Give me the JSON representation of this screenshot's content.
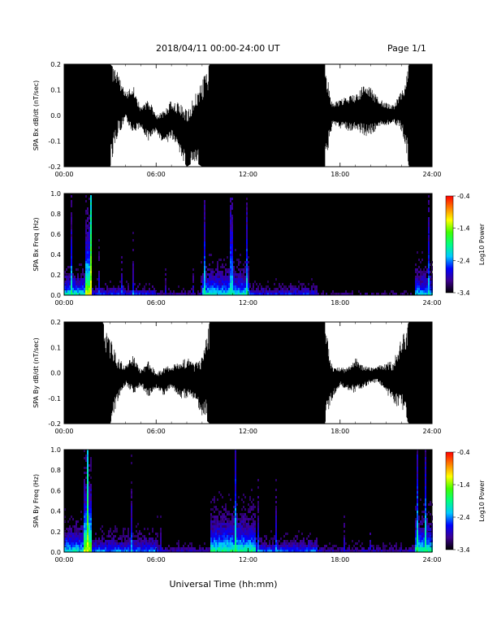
{
  "header": {
    "title": "2018/04/11  00:00-24:00 UT",
    "page": "Page 1/1"
  },
  "colors": {
    "spectrogram_scale": [
      "#000000",
      "#3d0090",
      "#0000ff",
      "#00c8ff",
      "#00ff80",
      "#40ff00",
      "#ffff00",
      "#ff8000",
      "#ff0000"
    ]
  },
  "chart_data": [
    {
      "type": "line",
      "ylabel": "SPA Bx dB/dt (nT/sec)",
      "ylim": [
        -0.2,
        0.2
      ],
      "yticks": [
        {
          "v": 0.2,
          "label": "0.2"
        },
        {
          "v": 0.1,
          "label": "0.1"
        },
        {
          "v": 0.0,
          "label": "0.0"
        },
        {
          "v": -0.1,
          "label": "-0.1"
        },
        {
          "v": -0.2,
          "label": "-0.2"
        }
      ],
      "xlim": [
        0,
        24
      ],
      "xticks": [
        "00:00",
        "06:00",
        "12:00",
        "18:00",
        "24:00"
      ],
      "envelope": {
        "t": [
          0,
          0.5,
          1,
          1.5,
          2,
          2.5,
          3,
          3.5,
          4,
          4.5,
          5,
          5.5,
          6,
          6.5,
          7,
          7.5,
          8,
          8.5,
          9,
          9.5,
          10,
          11,
          12,
          13,
          14,
          15,
          15.5,
          16,
          16.5,
          17,
          17.5,
          18,
          18.5,
          19,
          19.5,
          20,
          20.5,
          21,
          21.5,
          22,
          22.5,
          23,
          23.5,
          24
        ],
        "upper": [
          0.2,
          0.2,
          0.2,
          0.2,
          0.2,
          0.2,
          0.2,
          0.17,
          0.09,
          0.12,
          0.03,
          0.07,
          0.0,
          0.02,
          0.06,
          0.05,
          0.02,
          0.08,
          0.14,
          0.2,
          0.2,
          0.2,
          0.2,
          0.2,
          0.2,
          0.2,
          0.2,
          0.2,
          0.2,
          0.2,
          0.05,
          0.06,
          0.08,
          0.08,
          0.12,
          0.11,
          0.07,
          0.05,
          0.04,
          0.1,
          0.2,
          0.2,
          0.2,
          0.2
        ],
        "lower": [
          -0.2,
          -0.2,
          -0.2,
          -0.2,
          -0.2,
          -0.2,
          -0.2,
          -0.08,
          -0.02,
          -0.07,
          -0.05,
          -0.1,
          -0.06,
          -0.12,
          -0.09,
          -0.15,
          -0.2,
          -0.18,
          -0.2,
          -0.2,
          -0.2,
          -0.2,
          -0.2,
          -0.2,
          -0.2,
          -0.2,
          -0.2,
          -0.2,
          -0.2,
          -0.2,
          -0.04,
          -0.05,
          -0.06,
          -0.06,
          -0.08,
          -0.08,
          -0.05,
          -0.04,
          -0.03,
          -0.06,
          -0.2,
          -0.2,
          -0.2,
          -0.2
        ]
      }
    },
    {
      "type": "heatmap",
      "ylabel": "SPA Bx Freq (Hz)",
      "ylim": [
        0,
        1
      ],
      "yticks": [
        {
          "v": 1.0,
          "label": "1.0"
        },
        {
          "v": 0.8,
          "label": "0.8"
        },
        {
          "v": 0.6,
          "label": "0.6"
        },
        {
          "v": 0.4,
          "label": "0.4"
        },
        {
          "v": 0.2,
          "label": "0.2"
        },
        {
          "v": 0.0,
          "label": "0.0"
        }
      ],
      "xlim": [
        0,
        24
      ],
      "xticks": [
        "00:00",
        "06:00",
        "12:00",
        "18:00",
        "24:00"
      ],
      "colorbar": {
        "label": "Log10 Power",
        "range": [
          -3.4,
          -0.4
        ],
        "ticks": [
          "-0.4",
          "-1.4",
          "-2.4",
          "-3.4"
        ]
      },
      "bands": [
        {
          "t0": 0.0,
          "t1": 1.3,
          "level": 0.55,
          "fmax": 0.12
        },
        {
          "t0": 0.5,
          "t1": 0.6,
          "level": 0.75,
          "fmax": 1.0
        },
        {
          "t0": 1.3,
          "t1": 1.7,
          "level": 0.8,
          "fmax": 0.35
        },
        {
          "t0": 1.7,
          "t1": 6.0,
          "level": 0.35,
          "fmax": 0.06
        },
        {
          "t0": 6.0,
          "t1": 9.0,
          "level": 0.25,
          "fmax": 0.04
        },
        {
          "t0": 9.0,
          "t1": 12.0,
          "level": 0.5,
          "fmax": 0.15
        },
        {
          "t0": 12.0,
          "t1": 16.5,
          "level": 0.35,
          "fmax": 0.06
        },
        {
          "t0": 16.5,
          "t1": 22.8,
          "level": 0.2,
          "fmax": 0.03
        },
        {
          "t0": 22.8,
          "t1": 24.0,
          "level": 0.45,
          "fmax": 0.15
        }
      ]
    },
    {
      "type": "line",
      "ylabel": "SPA By dB/dt (nT/sec)",
      "ylim": [
        -0.2,
        0.2
      ],
      "yticks": [
        {
          "v": 0.2,
          "label": "0.2"
        },
        {
          "v": 0.1,
          "label": "0.1"
        },
        {
          "v": 0.0,
          "label": "0.0"
        },
        {
          "v": -0.1,
          "label": "-0.1"
        },
        {
          "v": -0.2,
          "label": "-0.2"
        }
      ],
      "xlim": [
        0,
        24
      ],
      "xticks": [
        "00:00",
        "06:00",
        "12:00",
        "18:00",
        "24:00"
      ],
      "envelope": {
        "t": [
          0,
          0.5,
          1,
          1.5,
          2,
          2.5,
          3,
          3.5,
          4,
          4.5,
          5,
          5.5,
          6,
          6.5,
          7,
          7.5,
          8,
          8.5,
          9,
          9.5,
          10,
          11,
          12,
          13,
          14,
          15,
          15.5,
          16,
          16.5,
          17,
          17.5,
          18,
          18.5,
          19,
          19.5,
          20,
          20.5,
          21,
          21.5,
          22,
          22.5,
          23,
          23.5,
          24
        ],
        "upper": [
          0.2,
          0.2,
          0.2,
          0.2,
          0.2,
          0.2,
          0.14,
          0.06,
          0.03,
          0.07,
          0.01,
          0.05,
          0.0,
          0.02,
          0.03,
          0.04,
          0.06,
          0.04,
          0.07,
          0.2,
          0.2,
          0.2,
          0.2,
          0.2,
          0.2,
          0.2,
          0.2,
          0.2,
          0.2,
          0.2,
          0.03,
          0.02,
          0.02,
          0.06,
          0.03,
          0.02,
          0.03,
          0.04,
          0.05,
          0.14,
          0.2,
          0.2,
          0.2,
          0.2
        ],
        "lower": [
          -0.2,
          -0.2,
          -0.2,
          -0.2,
          -0.2,
          -0.2,
          -0.2,
          -0.12,
          -0.05,
          -0.09,
          -0.05,
          -0.1,
          -0.06,
          -0.09,
          -0.06,
          -0.1,
          -0.1,
          -0.11,
          -0.17,
          -0.2,
          -0.2,
          -0.2,
          -0.2,
          -0.2,
          -0.2,
          -0.2,
          -0.2,
          -0.2,
          -0.2,
          -0.2,
          -0.1,
          -0.05,
          -0.07,
          -0.08,
          -0.06,
          -0.04,
          -0.04,
          -0.08,
          -0.12,
          -0.15,
          -0.2,
          -0.2,
          -0.2,
          -0.2
        ]
      }
    },
    {
      "type": "heatmap",
      "ylabel": "SPA By Freq (Hz)",
      "ylim": [
        0,
        1
      ],
      "yticks": [
        {
          "v": 1.0,
          "label": "1.0"
        },
        {
          "v": 0.8,
          "label": "0.8"
        },
        {
          "v": 0.6,
          "label": "0.6"
        },
        {
          "v": 0.4,
          "label": "0.4"
        },
        {
          "v": 0.2,
          "label": "0.2"
        },
        {
          "v": 0.0,
          "label": "0.0"
        }
      ],
      "xlim": [
        0,
        24
      ],
      "xticks": [
        "00:00",
        "06:00",
        "12:00",
        "18:00",
        "24:00"
      ],
      "colorbar": {
        "label": "Log10 Power",
        "range": [
          -3.4,
          -0.4
        ],
        "ticks": [
          "-0.4",
          "-1.4",
          "-2.4",
          "-3.4"
        ]
      },
      "bands": [
        {
          "t0": 0.0,
          "t1": 1.2,
          "level": 0.5,
          "fmax": 0.15
        },
        {
          "t0": 1.2,
          "t1": 1.8,
          "level": 0.75,
          "fmax": 0.35
        },
        {
          "t0": 1.8,
          "t1": 6.0,
          "level": 0.4,
          "fmax": 0.1
        },
        {
          "t0": 6.0,
          "t1": 9.5,
          "level": 0.25,
          "fmax": 0.05
        },
        {
          "t0": 9.5,
          "t1": 12.5,
          "level": 0.55,
          "fmax": 0.2
        },
        {
          "t0": 12.5,
          "t1": 16.5,
          "level": 0.4,
          "fmax": 0.08
        },
        {
          "t0": 16.5,
          "t1": 22.8,
          "level": 0.25,
          "fmax": 0.05
        },
        {
          "t0": 22.8,
          "t1": 24.0,
          "level": 0.55,
          "fmax": 0.18
        }
      ]
    }
  ],
  "xaxis_label": "Universal Time (hh:mm)"
}
